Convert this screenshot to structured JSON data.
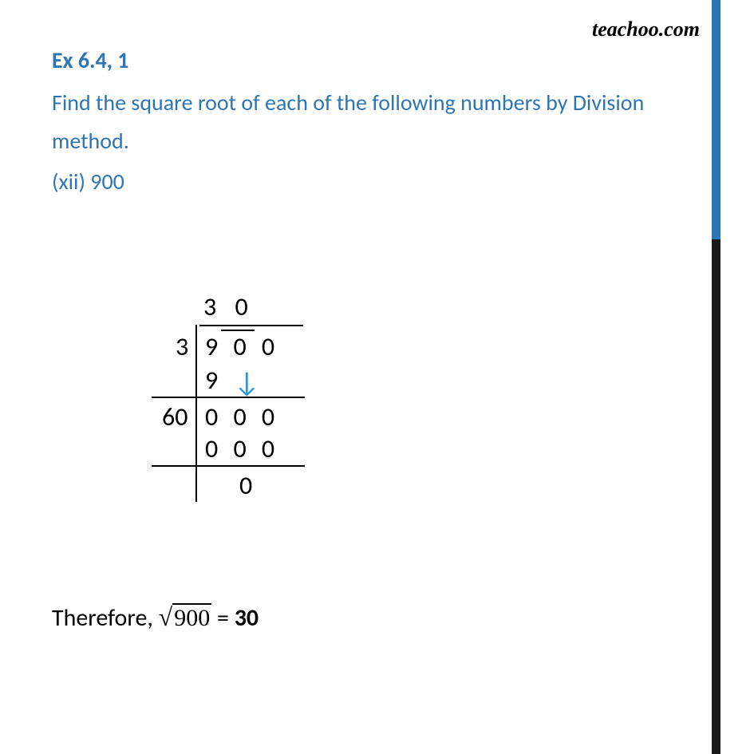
{
  "watermark": "teachoo.com",
  "header": {
    "exercise_label": "Ex 6.4, 1",
    "question_text": "Find the square root of each of the following numbers by Division method.",
    "subpart": "(xii) 900"
  },
  "longdivision": {
    "quotient": "3 0",
    "divisor_step1": "3",
    "dividend": "9 0 0",
    "subtract_step1": "9",
    "divisor_step2": "60",
    "remainder_line1": "0 0 0",
    "subtract_step2": "0 0 0",
    "final_remainder": "0"
  },
  "conclusion": {
    "prefix": "Therefore, ",
    "sqrt_value": "900",
    "equals": " = ",
    "answer": "30"
  },
  "colors": {
    "heading_color": "#2e75b6",
    "text_color": "#000000",
    "arrow_color": "#2e9acc",
    "bar_top": "#2e75b6",
    "bar_bottom": "#1a1a1a",
    "background": "#ffffff"
  },
  "fonts": {
    "body_font": "Segoe UI, Calibri, Arial",
    "math_font": "Cambria Math, Times New Roman",
    "watermark_font": "Brush Script MT, cursive",
    "heading_size_pt": 21,
    "body_size_pt": 21,
    "math_size_pt": 24
  }
}
